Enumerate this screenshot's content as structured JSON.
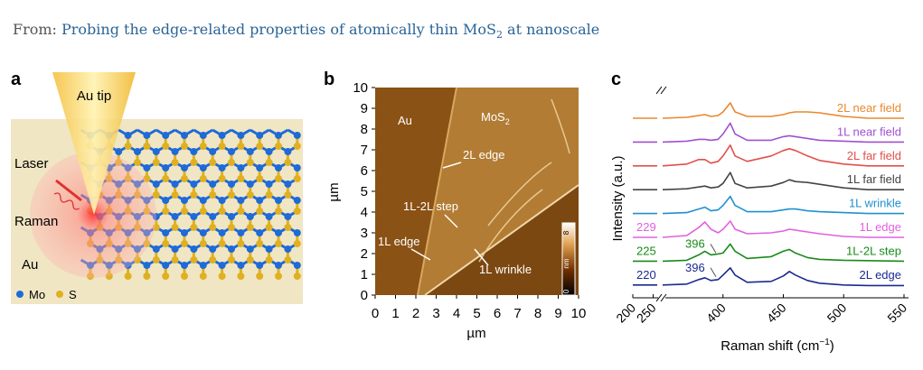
{
  "header": {
    "prefix": "From:",
    "title": "Probing the edge-related properties of atomically thin MoS",
    "title_sub": "2",
    "title_end": " at nanoscale"
  },
  "panel_a": {
    "label": "a",
    "tip": "Au tip",
    "laser": "Laser",
    "raman": "Raman",
    "substrate": "Au",
    "legend": [
      "Mo",
      "S"
    ]
  },
  "panel_b": {
    "label": "b",
    "xticks": [
      0,
      1,
      2,
      3,
      4,
      5,
      6,
      7,
      8,
      9,
      10
    ],
    "yticks": [
      0,
      1,
      2,
      3,
      4,
      5,
      6,
      7,
      8,
      9,
      10
    ],
    "xlabel": "µm",
    "ylabel": "µm",
    "regions": [
      "Au",
      "MoS",
      "2"
    ],
    "annotations": [
      "2L edge",
      "1L-2L step",
      "1L edge",
      "1L wrinkle"
    ],
    "colorbar": {
      "max": "8",
      "min": "0",
      "unit": "nm"
    }
  },
  "chart_data": {
    "type": "line",
    "label": "c",
    "ylabel": "Intensity (a.u.)",
    "xlabel": "Raman shift (cm",
    "xlabel_sup": "−1",
    "xlabel_end": ")",
    "xlim": [
      200,
      550
    ],
    "xbreak": [
      260,
      350
    ],
    "xticks": [
      200,
      250,
      400,
      450,
      500,
      550
    ],
    "x": [
      200,
      260,
      350,
      370,
      380,
      385,
      390,
      396,
      400,
      406,
      410,
      420,
      440,
      450,
      455,
      460,
      470,
      480,
      500,
      520,
      550
    ],
    "series": [
      {
        "name": "2L near field",
        "color": "#e8882e",
        "values": [
          0.05,
          0.05,
          0.05,
          0.1,
          0.2,
          0.25,
          0.15,
          0.2,
          0.4,
          0.9,
          0.4,
          0.15,
          0.15,
          0.25,
          0.35,
          0.4,
          0.4,
          0.35,
          0.15,
          0.05,
          0.05
        ]
      },
      {
        "name": "1L near field",
        "color": "#a050d0",
        "values": [
          0.05,
          0.05,
          0.05,
          0.1,
          0.2,
          0.2,
          0.15,
          0.2,
          0.5,
          1.1,
          0.5,
          0.15,
          0.15,
          0.35,
          0.4,
          0.35,
          0.25,
          0.15,
          0.1,
          0.05,
          0.05
        ]
      },
      {
        "name": "2L far field",
        "color": "#e0504a",
        "values": [
          0.05,
          0.05,
          0.05,
          0.15,
          0.4,
          0.4,
          0.2,
          0.3,
          0.6,
          1.2,
          0.6,
          0.3,
          0.6,
          0.9,
          1.0,
          0.9,
          0.6,
          0.35,
          0.15,
          0.05,
          0.05
        ]
      },
      {
        "name": "1L far field",
        "color": "#444444",
        "values": [
          0.05,
          0.05,
          0.05,
          0.1,
          0.2,
          0.25,
          0.15,
          0.2,
          0.4,
          1.0,
          0.4,
          0.15,
          0.25,
          0.45,
          0.6,
          0.5,
          0.45,
          0.35,
          0.15,
          0.05,
          0.05
        ]
      },
      {
        "name": "1L wrinkle",
        "color": "#2090d0",
        "values": [
          0.05,
          0.05,
          0.05,
          0.1,
          0.3,
          0.4,
          0.2,
          0.25,
          0.5,
          1.0,
          0.5,
          0.15,
          0.15,
          0.25,
          0.3,
          0.3,
          0.2,
          0.15,
          0.1,
          0.05,
          0.05
        ]
      },
      {
        "name": "1L edge",
        "color": "#e060e0",
        "values": [
          0.05,
          0.05,
          0.05,
          0.15,
          0.6,
          0.9,
          0.5,
          0.3,
          0.5,
          0.95,
          0.5,
          0.25,
          0.3,
          0.4,
          0.5,
          0.45,
          0.35,
          0.25,
          0.1,
          0.05,
          0.05
        ]
      },
      {
        "name": "1L-2L step",
        "color": "#1a8a1a",
        "values": [
          0.05,
          0.05,
          0.05,
          0.1,
          0.4,
          0.6,
          0.4,
          0.45,
          0.5,
          1.0,
          0.6,
          0.2,
          0.3,
          0.6,
          0.7,
          0.5,
          0.25,
          0.15,
          0.1,
          0.08,
          0.05
        ]
      },
      {
        "name": "2L edge",
        "color": "#1a2a90",
        "values": [
          0.05,
          0.05,
          0.05,
          0.1,
          0.35,
          0.45,
          0.3,
          0.35,
          0.6,
          1.0,
          0.6,
          0.2,
          0.25,
          0.55,
          0.8,
          0.6,
          0.3,
          0.15,
          0.05,
          0.02,
          0.02
        ]
      }
    ],
    "annotations": [
      {
        "text": "229",
        "series": 5
      },
      {
        "text": "225",
        "series": 6
      },
      {
        "text": "220",
        "series": 7
      },
      {
        "text": "396",
        "series": 6
      },
      {
        "text": "396",
        "series": 7
      }
    ]
  }
}
